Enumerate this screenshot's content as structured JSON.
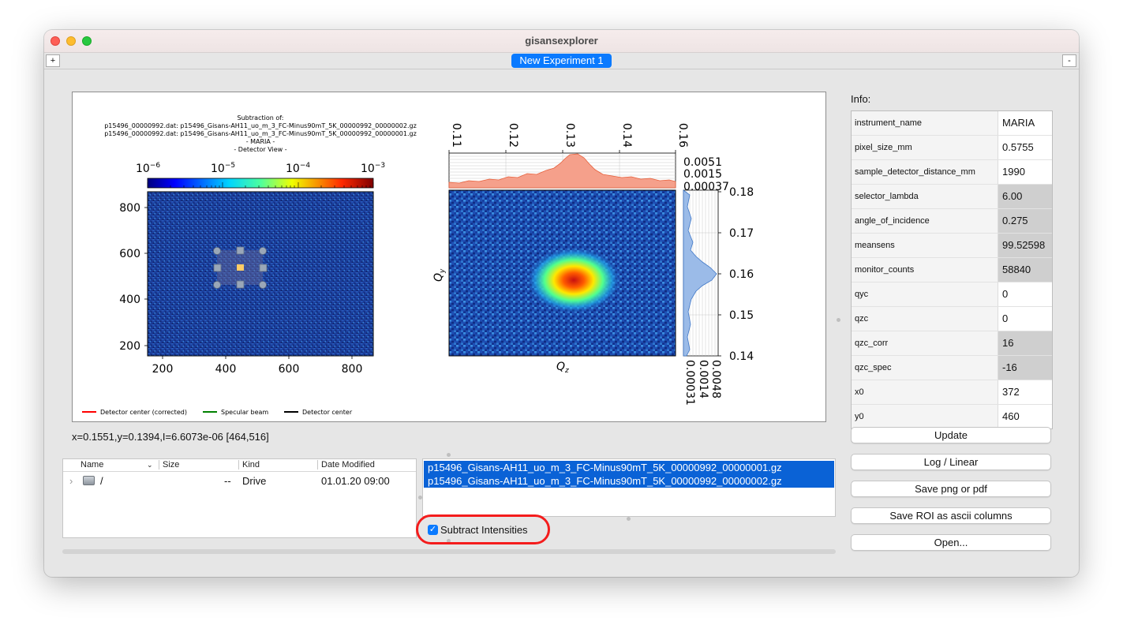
{
  "window": {
    "title": "gisansexplorer"
  },
  "tabs": {
    "add_label": "+",
    "remove_label": "-",
    "active_label": "New Experiment 1"
  },
  "plot": {
    "title_lines": [
      "Subtraction of:",
      "p15496_00000992.dat: p15496_Gisans-AH11_uo_m_3_FC-Minus90mT_5K_00000992_00000002.gz",
      "p15496_00000992.dat: p15496_Gisans-AH11_uo_m_3_FC-Minus90mT_5K_00000992_00000001.gz",
      "- MARIA -",
      "- Detector View -"
    ],
    "colorbar_ticks": [
      "10",
      "10",
      "10",
      "10"
    ],
    "colorbar_exponents": [
      "−6",
      "−5",
      "−4",
      "−3"
    ],
    "detector_xticks": [
      "200",
      "400",
      "600",
      "800"
    ],
    "detector_yticks": [
      "800",
      "600",
      "400",
      "200"
    ],
    "qz_top_ticks": [
      "0.11",
      "0.12",
      "0.13",
      "0.14",
      "0.16"
    ],
    "qz_hist_ticks": [
      "0.0051",
      "0.0015",
      "0.00037"
    ],
    "qy_ticks": [
      "0.18",
      "0.17",
      "0.16",
      "0.15",
      "0.14"
    ],
    "qy_hist_ticks": [
      "0.0048",
      "0.0014",
      "0.00031"
    ],
    "xlabel": "Q",
    "xlabel_sub": "z",
    "ylabel": "Q",
    "ylabel_sub": "y",
    "legend": [
      {
        "label": "Detector center (corrected)",
        "color": "#ff0000"
      },
      {
        "label": "Specular beam",
        "color": "#008000"
      },
      {
        "label": "Detector center",
        "color": "#000000"
      }
    ]
  },
  "status": {
    "coords": "x=0.1551,y=0.1394,I=6.6073e-06   [464,516]"
  },
  "info": {
    "label": "Info:",
    "rows": [
      {
        "key": "instrument_name",
        "value": "MARIA",
        "editable": false
      },
      {
        "key": "pixel_size_mm",
        "value": "0.5755",
        "editable": false
      },
      {
        "key": "sample_detector_distance_mm",
        "value": "1990",
        "editable": false
      },
      {
        "key": "selector_lambda",
        "value": "6.00",
        "editable": true
      },
      {
        "key": "angle_of_incidence",
        "value": "0.275",
        "editable": true
      },
      {
        "key": "meansens",
        "value": "99.52598",
        "editable": true
      },
      {
        "key": "monitor_counts",
        "value": "58840",
        "editable": true
      },
      {
        "key": "qyc",
        "value": "0",
        "editable": false
      },
      {
        "key": "qzc",
        "value": "0",
        "editable": false
      },
      {
        "key": "qzc_corr",
        "value": "16",
        "editable": true
      },
      {
        "key": "qzc_spec",
        "value": "-16",
        "editable": true
      },
      {
        "key": "x0",
        "value": "372",
        "editable": false
      },
      {
        "key": "y0",
        "value": "460",
        "editable": false
      }
    ]
  },
  "buttons": {
    "update": "Update",
    "log_linear": "Log / Linear",
    "save_png": "Save png or pdf",
    "save_roi": "Save ROI as ascii columns",
    "open": "Open..."
  },
  "file_browser": {
    "columns": {
      "name": "Name",
      "size": "Size",
      "kind": "Kind",
      "date": "Date Modified"
    },
    "rows": [
      {
        "expand": "›",
        "name": "/",
        "size": "--",
        "kind": "Drive",
        "date": "01.01.20 09:00"
      }
    ]
  },
  "file_list": [
    "p15496_Gisans-AH11_uo_m_3_FC-Minus90mT_5K_00000992_00000001.gz",
    "p15496_Gisans-AH11_uo_m_3_FC-Minus90mT_5K_00000992_00000002.gz"
  ],
  "subtract": {
    "label": "Subtract Intensities",
    "checked": true,
    "check_glyph": "✓"
  }
}
